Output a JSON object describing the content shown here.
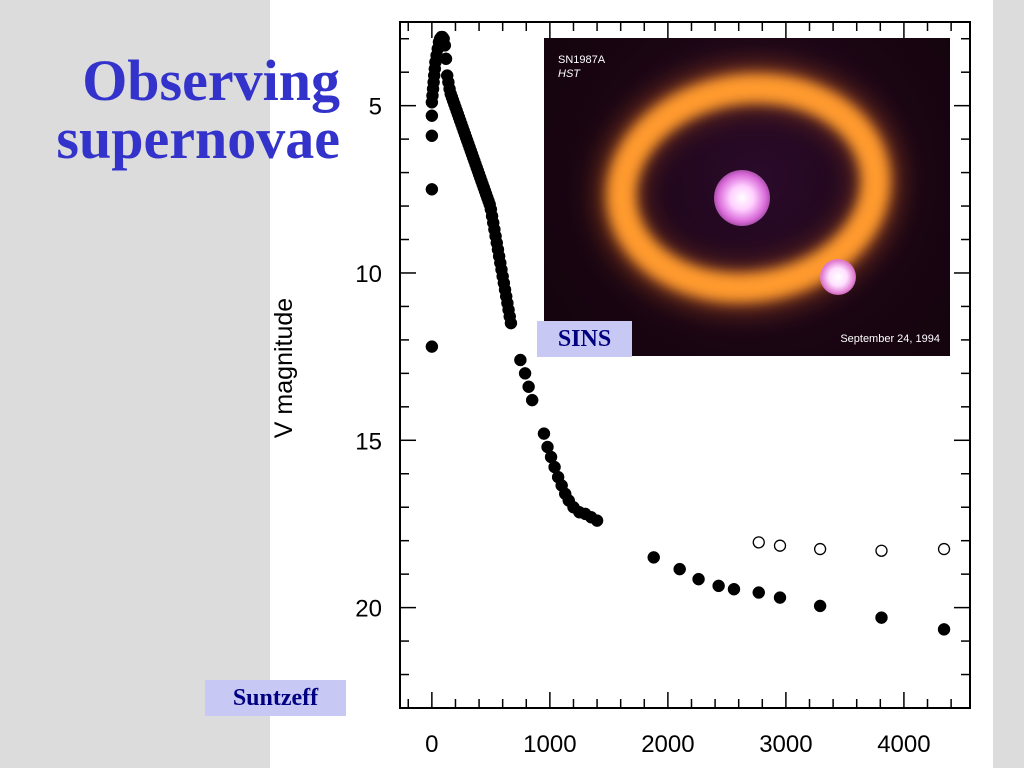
{
  "slide": {
    "title_line1": "Observing",
    "title_line2": "supernovae",
    "title_color": "#3333cc",
    "panel_color": "#dcdcdc"
  },
  "photo": {
    "object": "SN1987A",
    "telescope": "HST",
    "date": "September 24, 1994"
  },
  "credits": {
    "image_credit": "SINS",
    "chart_credit": "Suntzeff"
  },
  "chart_data": {
    "type": "scatter",
    "title": "",
    "xlabel": "",
    "ylabel": "V magnitude",
    "xlim": [
      -270,
      4560
    ],
    "ylim": [
      23,
      2.5
    ],
    "y_inverted": true,
    "x_ticks": [
      0,
      1000,
      2000,
      3000,
      4000
    ],
    "y_ticks": [
      5,
      10,
      15,
      20
    ],
    "grid": false,
    "series": [
      {
        "marker": "filled",
        "points": [
          [
            0,
            12.2
          ],
          [
            0,
            7.5
          ],
          [
            0,
            5.9
          ],
          [
            0,
            5.3
          ],
          [
            0,
            4.9
          ],
          [
            5,
            4.7
          ],
          [
            10,
            4.5
          ],
          [
            15,
            4.3
          ],
          [
            20,
            4.1
          ],
          [
            25,
            3.9
          ],
          [
            30,
            3.7
          ],
          [
            40,
            3.5
          ],
          [
            50,
            3.3
          ],
          [
            60,
            3.1
          ],
          [
            70,
            3.0
          ],
          [
            80,
            2.95
          ],
          [
            90,
            2.95
          ],
          [
            100,
            3.0
          ],
          [
            110,
            3.2
          ],
          [
            120,
            3.6
          ],
          [
            130,
            4.1
          ],
          [
            140,
            4.3
          ],
          [
            150,
            4.5
          ],
          [
            160,
            4.65
          ],
          [
            170,
            4.75
          ],
          [
            180,
            4.85
          ],
          [
            190,
            4.95
          ],
          [
            200,
            5.05
          ],
          [
            210,
            5.15
          ],
          [
            220,
            5.25
          ],
          [
            230,
            5.35
          ],
          [
            240,
            5.45
          ],
          [
            250,
            5.55
          ],
          [
            260,
            5.65
          ],
          [
            270,
            5.75
          ],
          [
            280,
            5.85
          ],
          [
            290,
            5.95
          ],
          [
            300,
            6.05
          ],
          [
            310,
            6.15
          ],
          [
            320,
            6.25
          ],
          [
            330,
            6.35
          ],
          [
            340,
            6.45
          ],
          [
            350,
            6.55
          ],
          [
            360,
            6.65
          ],
          [
            370,
            6.75
          ],
          [
            380,
            6.85
          ],
          [
            390,
            6.95
          ],
          [
            400,
            7.05
          ],
          [
            410,
            7.15
          ],
          [
            420,
            7.25
          ],
          [
            430,
            7.35
          ],
          [
            440,
            7.45
          ],
          [
            450,
            7.55
          ],
          [
            460,
            7.65
          ],
          [
            470,
            7.75
          ],
          [
            480,
            7.85
          ],
          [
            490,
            7.95
          ],
          [
            500,
            8.1
          ],
          [
            510,
            8.3
          ],
          [
            520,
            8.5
          ],
          [
            530,
            8.7
          ],
          [
            540,
            8.9
          ],
          [
            550,
            9.1
          ],
          [
            560,
            9.3
          ],
          [
            570,
            9.5
          ],
          [
            580,
            9.7
          ],
          [
            590,
            9.9
          ],
          [
            600,
            10.1
          ],
          [
            610,
            10.3
          ],
          [
            620,
            10.5
          ],
          [
            630,
            10.7
          ],
          [
            640,
            10.9
          ],
          [
            650,
            11.1
          ],
          [
            660,
            11.3
          ],
          [
            670,
            11.5
          ],
          [
            750,
            12.6
          ],
          [
            790,
            13.0
          ],
          [
            820,
            13.4
          ],
          [
            850,
            13.8
          ],
          [
            950,
            14.8
          ],
          [
            980,
            15.2
          ],
          [
            1010,
            15.5
          ],
          [
            1040,
            15.8
          ],
          [
            1070,
            16.1
          ],
          [
            1100,
            16.35
          ],
          [
            1130,
            16.6
          ],
          [
            1160,
            16.8
          ],
          [
            1200,
            17.0
          ],
          [
            1250,
            17.15
          ],
          [
            1300,
            17.2
          ],
          [
            1350,
            17.3
          ],
          [
            1400,
            17.4
          ],
          [
            1880,
            18.5
          ],
          [
            2100,
            18.85
          ],
          [
            2260,
            19.15
          ],
          [
            2430,
            19.35
          ],
          [
            2560,
            19.45
          ],
          [
            2770,
            19.55
          ],
          [
            2950,
            19.7
          ],
          [
            3290,
            19.95
          ],
          [
            3810,
            20.3
          ],
          [
            4340,
            20.65
          ]
        ]
      },
      {
        "marker": "open",
        "points": [
          [
            2770,
            18.05
          ],
          [
            2950,
            18.15
          ],
          [
            3290,
            18.25
          ],
          [
            3810,
            18.3
          ],
          [
            4340,
            18.25
          ]
        ]
      }
    ]
  }
}
